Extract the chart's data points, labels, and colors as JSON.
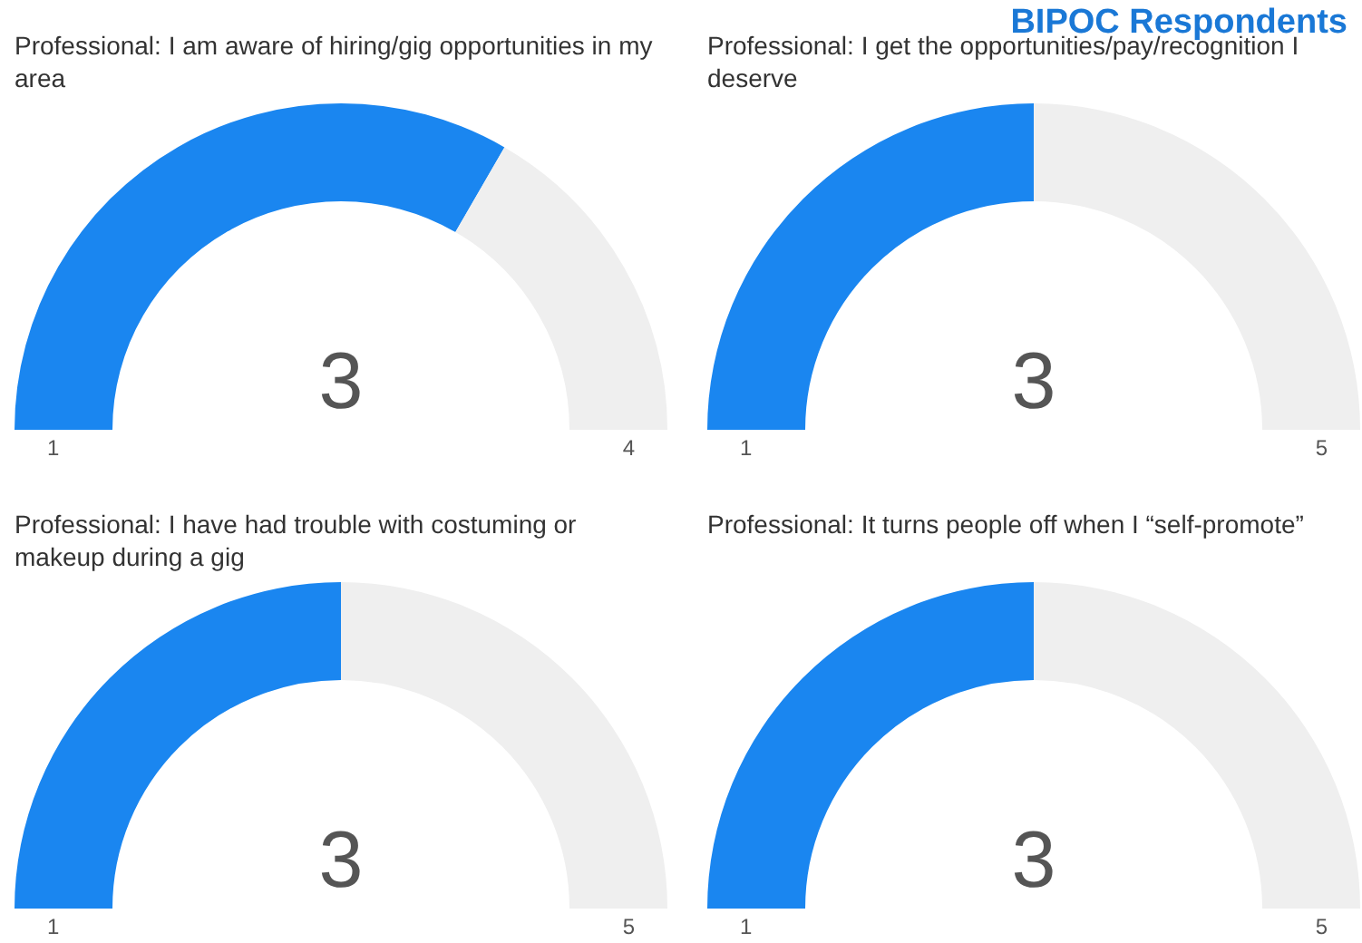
{
  "chart_data": [
    {
      "type": "other",
      "title": "BIPOC Respondents"
    },
    {
      "type": "donut",
      "title": "Professional: I am aware of hiring/gig opportunities in my area",
      "categories": [
        null,
        null
      ],
      "values": [
        66.7,
        33.3
      ],
      "colors": [
        "#1a86f0",
        "#efefef"
      ],
      "annotations": [
        "3",
        "1",
        "4"
      ]
    },
    {
      "type": "donut",
      "title": "Professional: I get the opportunities/pay/recognition I deserve",
      "categories": [
        null,
        null
      ],
      "values": [
        50,
        50
      ],
      "colors": [
        "#1a86f0",
        "#efefef"
      ],
      "annotations": [
        "3",
        "1",
        "5"
      ]
    },
    {
      "type": "donut",
      "title": "Professional: I have had trouble with costuming or makeup during a gig",
      "categories": [
        null,
        null
      ],
      "values": [
        50,
        50
      ],
      "colors": [
        "#1a86f0",
        "#efefef"
      ],
      "annotations": [
        "3",
        "1",
        "5"
      ]
    },
    {
      "type": "donut",
      "title": "Professional: It turns people off when I “self-promote”",
      "categories": [
        null,
        null
      ],
      "values": [
        50,
        50
      ],
      "colors": [
        "#1a86f0",
        "#efefef"
      ],
      "annotations": [
        "3",
        "1",
        "5"
      ]
    }
  ]
}
